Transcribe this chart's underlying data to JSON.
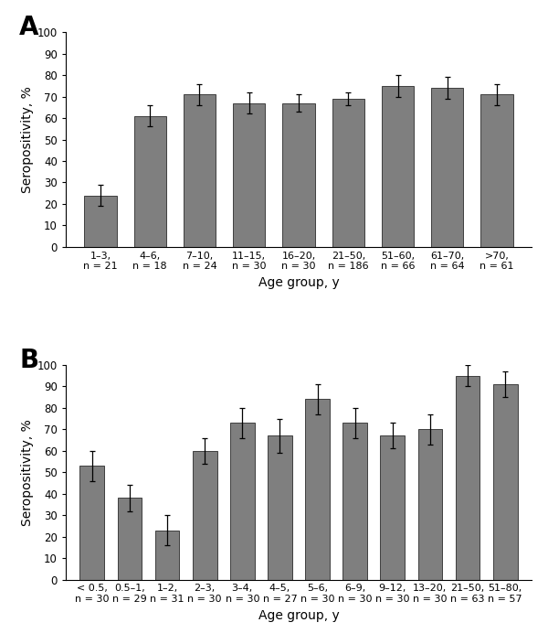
{
  "panel_A": {
    "label": "A",
    "categories": [
      "1–3,\nn = 21",
      "4–6,\nn = 18",
      "7–10,\nn = 24",
      "11–15,\nn = 30",
      "16–20,\nn = 30",
      "21–50,\nn = 186",
      "51–60,\nn = 66",
      "61–70,\nn = 64",
      ">70,\nn = 61"
    ],
    "values": [
      24,
      61,
      71,
      67,
      67,
      69,
      75,
      74,
      71
    ],
    "errors": [
      5,
      5,
      5,
      5,
      4,
      3,
      5,
      5,
      5
    ],
    "ylabel": "Seropositivity, %",
    "xlabel": "Age group, y",
    "ylim": [
      0,
      100
    ],
    "yticks": [
      0,
      10,
      20,
      30,
      40,
      50,
      60,
      70,
      80,
      90,
      100
    ]
  },
  "panel_B": {
    "label": "B",
    "categories": [
      "< 0.5,\nn = 30",
      "0.5–1,\nn = 29",
      "1–2,\nn = 31",
      "2–3,\nn = 30",
      "3–4,\nn = 30",
      "4–5,\nn = 27",
      "5–6,\nn = 30",
      "6–9,\nn = 30",
      "9–12,\nn = 30",
      "13–20,\nn = 30",
      "21–50,\nn = 63",
      "51–80,\nn = 57"
    ],
    "values": [
      53,
      38,
      23,
      60,
      73,
      67,
      84,
      73,
      67,
      70,
      95,
      91
    ],
    "errors": [
      7,
      6,
      7,
      6,
      7,
      8,
      7,
      7,
      6,
      7,
      5,
      6
    ],
    "ylabel": "Seropositivity, %",
    "xlabel": "Age group, y",
    "ylim": [
      0,
      100
    ],
    "yticks": [
      0,
      10,
      20,
      30,
      40,
      50,
      60,
      70,
      80,
      90,
      100
    ]
  },
  "bar_color": "#7f7f7f",
  "bar_edgecolor": "#3f3f3f",
  "background_color": "#ffffff",
  "bar_width": 0.65,
  "panel_label_fontsize": 20,
  "tick_fontsize": 8.5,
  "axis_label_fontsize": 10,
  "xtick_fontsize": 8.0,
  "ylabel_fontsize": 10
}
